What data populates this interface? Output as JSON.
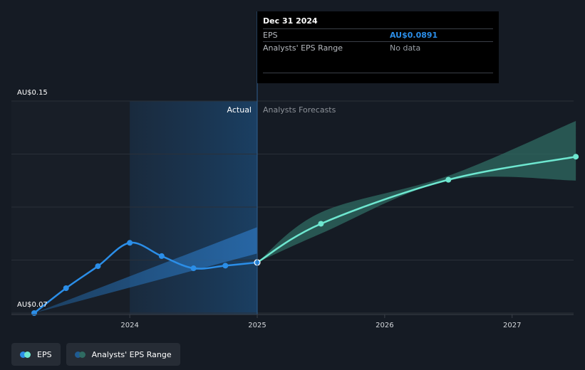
{
  "tooltip": {
    "date": "Dec 31 2024",
    "rows": [
      {
        "label": "EPS",
        "value": "AU$0.0891"
      },
      {
        "label": "Analysts' EPS Range",
        "value": "No data"
      }
    ]
  },
  "regions": {
    "actual": "Actual",
    "forecast": "Analysts Forecasts"
  },
  "legend": {
    "eps": "EPS",
    "range": "Analysts' EPS Range"
  },
  "colors": {
    "eps_actual": "#2b8ee8",
    "eps_forecast": "#6ee7d0",
    "range_forecast": "#2f6b62",
    "range_actual": "#1f5b92",
    "background": "#151b24"
  },
  "chart_data": {
    "type": "line",
    "y_unit": "AU$",
    "ylim": [
      0.07,
      0.15
    ],
    "y_ticks": [
      {
        "value": 0.15,
        "label": "AU$0.15"
      },
      {
        "value": 0.07,
        "label": "AU$0.07"
      }
    ],
    "x_range": [
      2023.25,
      2027.5
    ],
    "x_ticks": [
      {
        "value": 2024,
        "label": "2024"
      },
      {
        "value": 2025,
        "label": "2025"
      },
      {
        "value": 2026,
        "label": "2026"
      },
      {
        "value": 2027,
        "label": "2027"
      }
    ],
    "divider_x": 2025,
    "highlight_start_x": 2024,
    "hover_x": 2025,
    "series": [
      {
        "name": "EPS",
        "role": "actual",
        "points": [
          [
            2023.25,
            0.07
          ],
          [
            2023.5,
            0.0794
          ],
          [
            2023.75,
            0.0877
          ],
          [
            2024.0,
            0.0965
          ],
          [
            2024.25,
            0.0915
          ],
          [
            2024.5,
            0.0869
          ],
          [
            2024.75,
            0.0879
          ],
          [
            2025.0,
            0.0891
          ]
        ]
      },
      {
        "name": "EPS",
        "role": "forecast",
        "points": [
          [
            2025.0,
            0.0891
          ],
          [
            2025.5,
            0.1037
          ],
          [
            2026.5,
            0.1203
          ],
          [
            2027.5,
            0.129
          ]
        ]
      }
    ],
    "ranges": [
      {
        "name": "Analysts' EPS Range",
        "role": "actual",
        "upper": [
          [
            2023.25,
            0.07
          ],
          [
            2025.0,
            0.1024
          ]
        ],
        "lower": [
          [
            2023.25,
            0.07
          ],
          [
            2025.0,
            0.0925
          ]
        ]
      },
      {
        "name": "Analysts' EPS Range",
        "role": "forecast",
        "upper": [
          [
            2025.0,
            0.0891
          ],
          [
            2025.5,
            0.108
          ],
          [
            2026.5,
            0.1218
          ],
          [
            2027.5,
            0.1425
          ]
        ],
        "lower": [
          [
            2025.0,
            0.0891
          ],
          [
            2025.5,
            0.1
          ],
          [
            2026.5,
            0.12
          ],
          [
            2027.5,
            0.12
          ]
        ]
      }
    ]
  }
}
